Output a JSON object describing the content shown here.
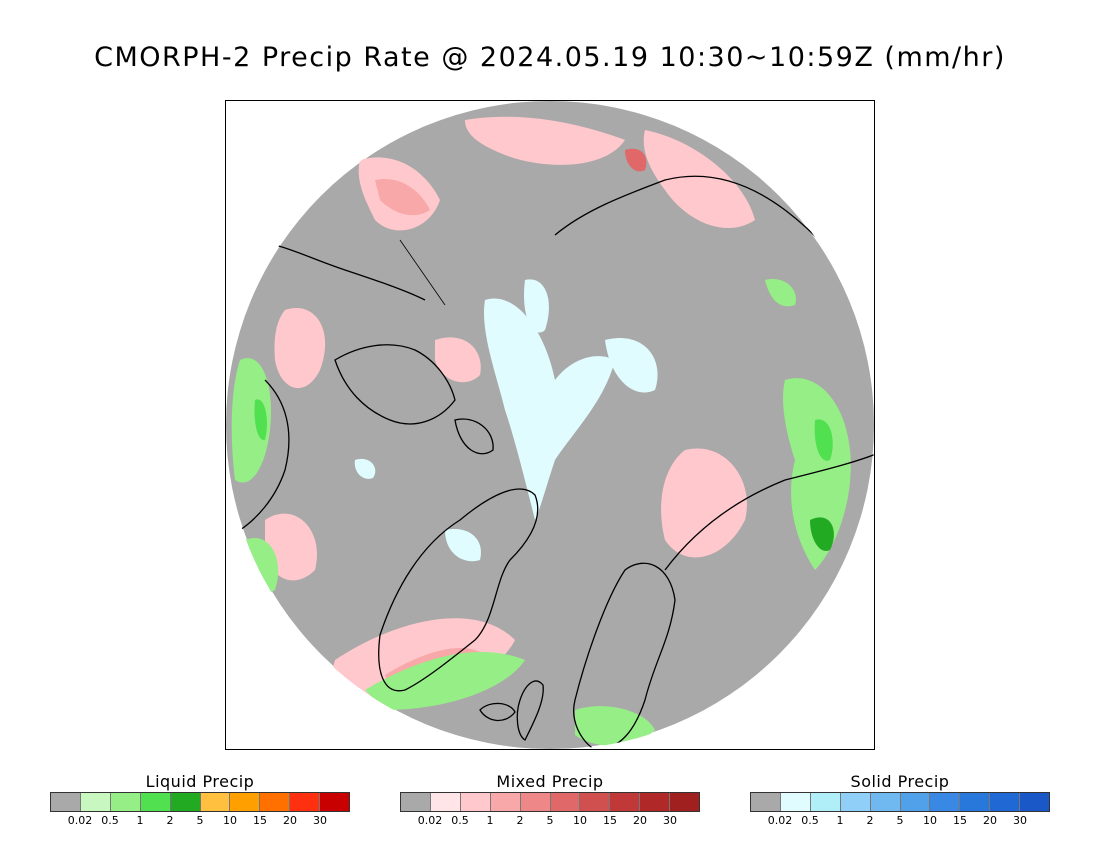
{
  "title": "CMORPH-2 Precip Rate @ 2024.05.19 10:30~10:59Z (mm/hr)",
  "map": {
    "projection": "north-polar-stereographic",
    "background_color": "#a9a9a9",
    "coastline_color": "#000000"
  },
  "legends": [
    {
      "id": "liquid",
      "title": "Liquid Precip",
      "colors": [
        "#a9a9a9",
        "#c8f8c0",
        "#96ee86",
        "#50e050",
        "#22aa22",
        "#ffc040",
        "#ffa000",
        "#ff7000",
        "#ff3010",
        "#c80000"
      ],
      "ticks": [
        "0.02",
        "0.5",
        "1",
        "2",
        "5",
        "10",
        "15",
        "20",
        "30"
      ]
    },
    {
      "id": "mixed",
      "title": "Mixed Precip",
      "colors": [
        "#a9a9a9",
        "#ffe4e8",
        "#ffc8cc",
        "#f8a8a8",
        "#ee8888",
        "#e06868",
        "#d05050",
        "#c03838",
        "#b02828",
        "#a02020"
      ],
      "ticks": [
        "0.02",
        "0.5",
        "1",
        "2",
        "5",
        "10",
        "15",
        "20",
        "30"
      ]
    },
    {
      "id": "solid",
      "title": "Solid Precip",
      "colors": [
        "#a9a9a9",
        "#e0fcff",
        "#b0eef8",
        "#90d0f8",
        "#70b8f0",
        "#50a0ea",
        "#3888e4",
        "#2878dc",
        "#2068d4",
        "#1a58c8"
      ],
      "ticks": [
        "0.02",
        "0.5",
        "1",
        "2",
        "5",
        "10",
        "15",
        "20",
        "30"
      ]
    }
  ]
}
